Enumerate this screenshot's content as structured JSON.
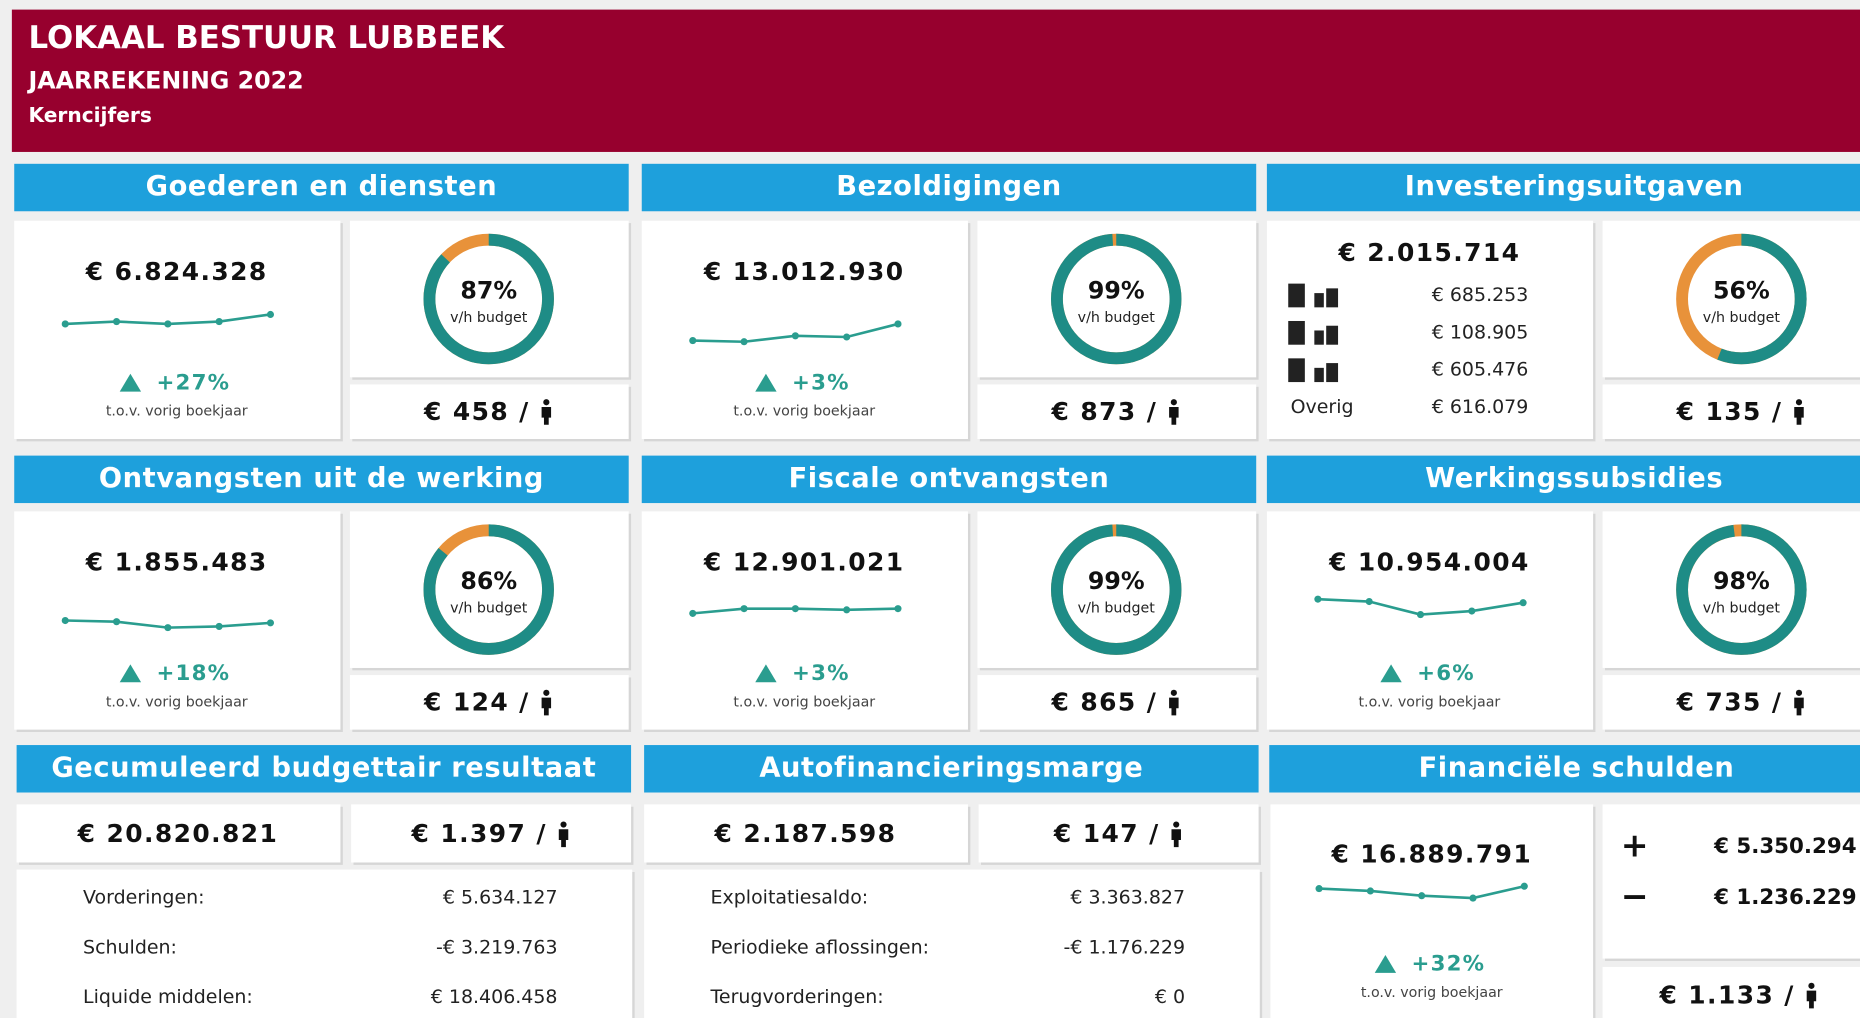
{
  "header": {
    "title": "LOKAAL BESTUUR LUBBEEK",
    "subtitle": "JAARREKENING 2022",
    "section": "Kerncijfers"
  },
  "cards": [
    {
      "title": "Goederen en diensten",
      "amount": "€ 6.824.328",
      "trend": [
        18,
        20,
        18,
        20,
        26
      ],
      "change": "+27%",
      "change_note": "t.o.v. vorig boekjaar",
      "budget": {
        "value": 87,
        "label": "87%"
      },
      "budget_caption": "v/h budget",
      "per_capita": "€ 458 /"
    },
    {
      "title": "Bezoldigingen",
      "amount": "€ 13.012.930",
      "trend": [
        4,
        3,
        8,
        7,
        18
      ],
      "change": "+3%",
      "change_note": "t.o.v. vorig boekjaar",
      "budget": {
        "value": 99,
        "label": "99%"
      },
      "budget_caption": "v/h budget",
      "per_capita": "€ 873 /"
    },
    {
      "title": "Investeringsuitgaven",
      "amount": "€ 2.015.714",
      "items": [
        {
          "amount": "€ 685.253"
        },
        {
          "amount": "€ 108.905"
        },
        {
          "amount": "€ 605.476"
        },
        {
          "label": "Overig",
          "amount": "€ 616.079"
        }
      ],
      "budget": {
        "value": 56,
        "label": "56%"
      },
      "budget_caption": "v/h budget",
      "per_capita": "€ 135 /"
    },
    {
      "title": "Ontvangsten uit de werking",
      "amount": "€ 1.855.483",
      "trend": [
        13,
        12,
        7,
        8,
        11
      ],
      "change": "+18%",
      "change_note": "t.o.v. vorig boekjaar",
      "budget": {
        "value": 86,
        "label": "86%"
      },
      "budget_caption": "v/h budget",
      "per_capita": "€ 124 /"
    },
    {
      "title": "Fiscale ontvangsten",
      "amount": "€ 12.901.021",
      "trend": [
        19,
        23,
        23,
        22,
        23
      ],
      "change": "+3%",
      "change_note": "t.o.v. vorig boekjaar",
      "budget": {
        "value": 99,
        "label": "99%"
      },
      "budget_caption": "v/h budget",
      "per_capita": "€ 865 /"
    },
    {
      "title": "Werkingssubsidies",
      "amount": "€ 10.954.004",
      "trend": [
        31,
        29,
        18,
        21,
        28
      ],
      "change": "+6%",
      "change_note": "t.o.v. vorig boekjaar",
      "budget": {
        "value": 98,
        "label": "98%"
      },
      "budget_caption": "v/h budget",
      "per_capita": "€ 735 /"
    }
  ],
  "summaries": [
    {
      "title": "Gecumuleerd budgettair resultaat",
      "amount": "€ 20.820.821",
      "per_capita": "€ 1.397 /",
      "rows": [
        [
          "Vorderingen:",
          "€ 5.634.127"
        ],
        [
          "Schulden:",
          "-€ 3.219.763"
        ],
        [
          "Liquide middelen:",
          "€ 18.406.458"
        ]
      ]
    },
    {
      "title": "Autofinancieringsmarge",
      "amount": "€ 2.187.598",
      "per_capita": "€ 147 /",
      "rows": [
        [
          "Exploitatiesaldo:",
          "€ 3.363.827"
        ],
        [
          "Periodieke aflossingen:",
          "-€ 1.176.229"
        ],
        [
          "Terugvorderingen:",
          "€ 0"
        ]
      ]
    },
    {
      "title": "Financiële schulden",
      "amount": "€ 16.889.791",
      "trend": [
        14,
        12,
        8,
        6,
        16
      ],
      "change": "+32%",
      "change_note": "t.o.v. vorig boekjaar",
      "movements": [
        [
          "+",
          "€ 5.350.294"
        ],
        [
          "−",
          "€ 1.236.229"
        ]
      ],
      "per_capita": "€ 1.133 /"
    }
  ]
}
